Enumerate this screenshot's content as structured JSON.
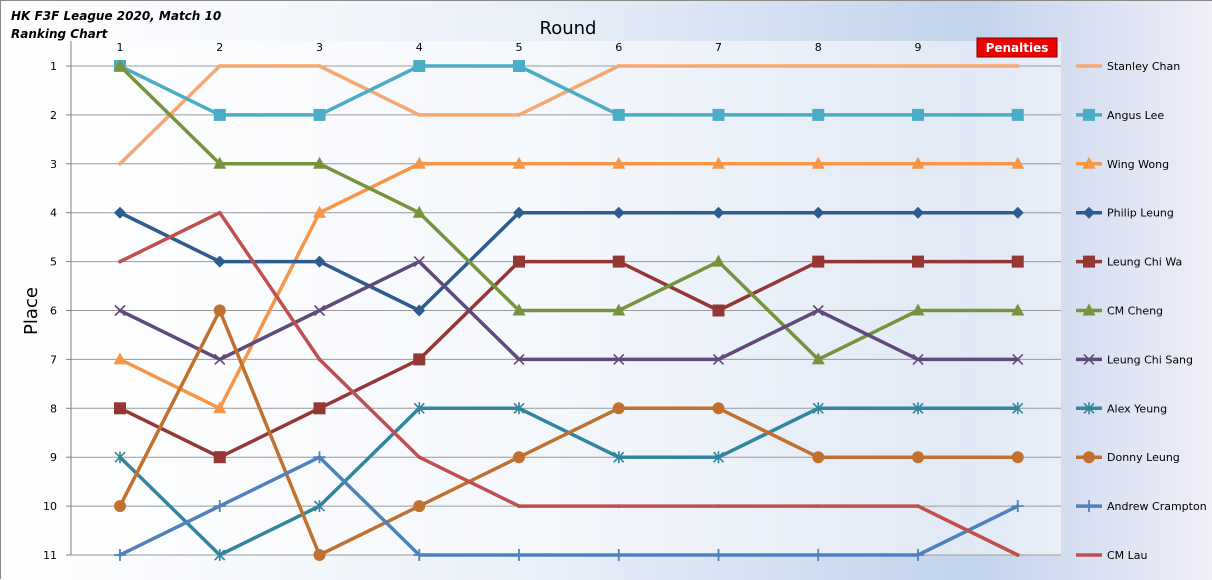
{
  "chart_data": {
    "type": "line",
    "title": "HK F3F League 2020, Match 10",
    "subtitle": "Ranking Chart",
    "xlabel": "Round",
    "ylabel": "Place",
    "x_ticks": [
      "1",
      "2",
      "3",
      "4",
      "5",
      "6",
      "7",
      "8",
      "9",
      "Penalties"
    ],
    "y_ticks": [
      1,
      2,
      3,
      4,
      5,
      6,
      7,
      8,
      9,
      10,
      11
    ],
    "ylim": [
      1,
      11
    ],
    "y_inverted": true,
    "grid": "horizontal",
    "legend_position": "right",
    "series": [
      {
        "name": "Stanley Chan",
        "color": "#F6A873",
        "marker": "none",
        "values": [
          3,
          1,
          1,
          2,
          2,
          1,
          1,
          1,
          1,
          1
        ]
      },
      {
        "name": "Angus Lee",
        "color": "#4BACC6",
        "marker": "square",
        "values": [
          1,
          2,
          2,
          1,
          1,
          2,
          2,
          2,
          2,
          2
        ]
      },
      {
        "name": "Wing Wong",
        "color": "#F79646",
        "marker": "triangle",
        "values": [
          7,
          8,
          4,
          3,
          3,
          3,
          3,
          3,
          3,
          3
        ]
      },
      {
        "name": "Philip Leung",
        "color": "#2F5C8F",
        "marker": "diamond",
        "values": [
          4,
          5,
          5,
          6,
          4,
          4,
          4,
          4,
          4,
          4
        ]
      },
      {
        "name": "Leung Chi Wa",
        "color": "#953735",
        "marker": "square",
        "values": [
          8,
          9,
          8,
          7,
          5,
          5,
          6,
          5,
          5,
          5
        ]
      },
      {
        "name": "CM Cheng",
        "color": "#77933C",
        "marker": "triangle",
        "values": [
          1,
          3,
          3,
          4,
          6,
          6,
          5,
          7,
          6,
          6
        ]
      },
      {
        "name": "Leung Chi Sang",
        "color": "#604A7B",
        "marker": "x",
        "values": [
          6,
          7,
          6,
          5,
          7,
          7,
          7,
          6,
          7,
          7
        ]
      },
      {
        "name": "Alex Yeung",
        "color": "#31859C",
        "marker": "star",
        "values": [
          9,
          11,
          10,
          8,
          8,
          9,
          9,
          8,
          8,
          8
        ]
      },
      {
        "name": "Donny Leung",
        "color": "#C0712F",
        "marker": "circle",
        "values": [
          10,
          6,
          11,
          10,
          9,
          8,
          8,
          9,
          9,
          9
        ]
      },
      {
        "name": "Andrew Crampton",
        "color": "#4F81BD",
        "marker": "plus",
        "values": [
          11,
          10,
          9,
          11,
          11,
          11,
          11,
          11,
          11,
          10
        ]
      },
      {
        "name": "CM Lau",
        "color": "#C0504D",
        "marker": "none",
        "values": [
          5,
          4,
          7,
          9,
          10,
          10,
          10,
          10,
          10,
          11
        ]
      }
    ]
  }
}
